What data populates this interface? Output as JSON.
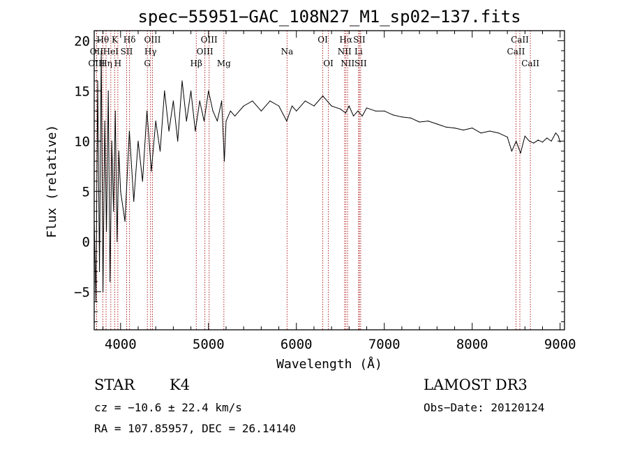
{
  "chart_data": {
    "type": "line",
    "title": "spec−55951−GAC_108N27_M1_sp02−137.fits",
    "xlabel": "Wavelength (Å)",
    "ylabel": "Flux (relative)",
    "xlim": [
      3700,
      9050
    ],
    "ylim": [
      -8.8,
      21.0
    ],
    "x_ticks": [
      4000,
      5000,
      6000,
      7000,
      8000,
      9000
    ],
    "x_tick_labels": [
      "4000",
      "5000",
      "6000",
      "7000",
      "8000",
      "9000"
    ],
    "y_ticks": [
      -5,
      0,
      5,
      10,
      15,
      20
    ],
    "y_tick_labels": [
      "−5",
      "0",
      "5",
      "10",
      "15",
      "20"
    ],
    "series": [
      {
        "name": "flux",
        "color": "#000000",
        "x": [
          3700,
          3720,
          3740,
          3760,
          3780,
          3800,
          3820,
          3840,
          3860,
          3880,
          3900,
          3920,
          3940,
          3960,
          3980,
          4000,
          4050,
          4100,
          4150,
          4200,
          4250,
          4300,
          4350,
          4400,
          4450,
          4500,
          4550,
          4600,
          4650,
          4700,
          4750,
          4800,
          4850,
          4900,
          4950,
          5000,
          5050,
          5100,
          5150,
          5180,
          5200,
          5250,
          5300,
          5400,
          5500,
          5600,
          5700,
          5800,
          5890,
          5950,
          6000,
          6100,
          6200,
          6300,
          6400,
          6500,
          6560,
          6600,
          6650,
          6700,
          6750,
          6800,
          6900,
          7000,
          7100,
          7200,
          7300,
          7400,
          7500,
          7600,
          7700,
          7800,
          7900,
          8000,
          8100,
          8200,
          8300,
          8400,
          8450,
          8500,
          8550,
          8600,
          8650,
          8700,
          8750,
          8800,
          8850,
          8900,
          8950,
          8980,
          9000
        ],
        "y": [
          2,
          -6,
          16,
          -3,
          19,
          -5,
          12,
          1,
          15,
          -4,
          10,
          3,
          13,
          0,
          9,
          5,
          2,
          11,
          4,
          10,
          6,
          13,
          7,
          12,
          9,
          15,
          11,
          14,
          10,
          16,
          12,
          15,
          11,
          14,
          12,
          15,
          13,
          12,
          14,
          8,
          12,
          13,
          12.5,
          13.5,
          14,
          13,
          14,
          13.5,
          12,
          13.5,
          13,
          14,
          13.5,
          14.5,
          13.5,
          13.2,
          12.8,
          13.5,
          12.5,
          13,
          12.5,
          13.3,
          13,
          13,
          12.6,
          12.4,
          12.3,
          11.9,
          12,
          11.7,
          11.4,
          11.3,
          11.1,
          11.3,
          10.8,
          11,
          10.8,
          10.4,
          9,
          10,
          8.8,
          10.5,
          10,
          9.8,
          10.1,
          9.9,
          10.3,
          10,
          10.8,
          10.5,
          9.9
        ]
      }
    ],
    "line_markers": [
      {
        "label": "Hθ",
        "x": 3798,
        "row": 1
      },
      {
        "label": "OII",
        "x": 3727,
        "row": 2
      },
      {
        "label": "OIII",
        "x": 3727,
        "row": 3
      },
      {
        "label": "Hη",
        "x": 3835,
        "row": 3
      },
      {
        "label": "K",
        "x": 3934,
        "row": 1
      },
      {
        "label": "HeI",
        "x": 3889,
        "row": 2
      },
      {
        "label": "H",
        "x": 3969,
        "row": 3
      },
      {
        "label": "Hδ",
        "x": 4102,
        "row": 1
      },
      {
        "label": "SII",
        "x": 4069,
        "row": 2
      },
      {
        "label": "OIII",
        "x": 4363,
        "row": 1
      },
      {
        "label": "Hγ",
        "x": 4341,
        "row": 2
      },
      {
        "label": "G",
        "x": 4305,
        "row": 3
      },
      {
        "label": "OIII",
        "x": 5007,
        "row": 1
      },
      {
        "label": "OIII",
        "x": 4959,
        "row": 2
      },
      {
        "label": "Hβ",
        "x": 4861,
        "row": 3
      },
      {
        "label": "Mg",
        "x": 5175,
        "row": 3
      },
      {
        "label": "Na",
        "x": 5894,
        "row": 2
      },
      {
        "label": "OI",
        "x": 6300,
        "row": 1
      },
      {
        "label": "OI",
        "x": 6364,
        "row": 3
      },
      {
        "label": "Hα",
        "x": 6563,
        "row": 1
      },
      {
        "label": "NII",
        "x": 6548,
        "row": 2
      },
      {
        "label": "NII",
        "x": 6583,
        "row": 3
      },
      {
        "label": "SII",
        "x": 6716,
        "row": 1
      },
      {
        "label": "Li",
        "x": 6708,
        "row": 2
      },
      {
        "label": "SII",
        "x": 6731,
        "row": 3
      },
      {
        "label": "CaII",
        "x": 8542,
        "row": 1
      },
      {
        "label": "CaII",
        "x": 8498,
        "row": 2
      },
      {
        "label": "CaII",
        "x": 8662,
        "row": 3
      }
    ],
    "marker_color": "#b22222"
  },
  "footer": {
    "class_label": "STAR",
    "subclass": "K4",
    "survey": "LAMOST DR3",
    "cz": "cz = −10.6 ± 22.4 km/s",
    "obs_date": "Obs−Date: 20120124",
    "coords": "RA = 107.85957, DEC =  26.14140"
  }
}
